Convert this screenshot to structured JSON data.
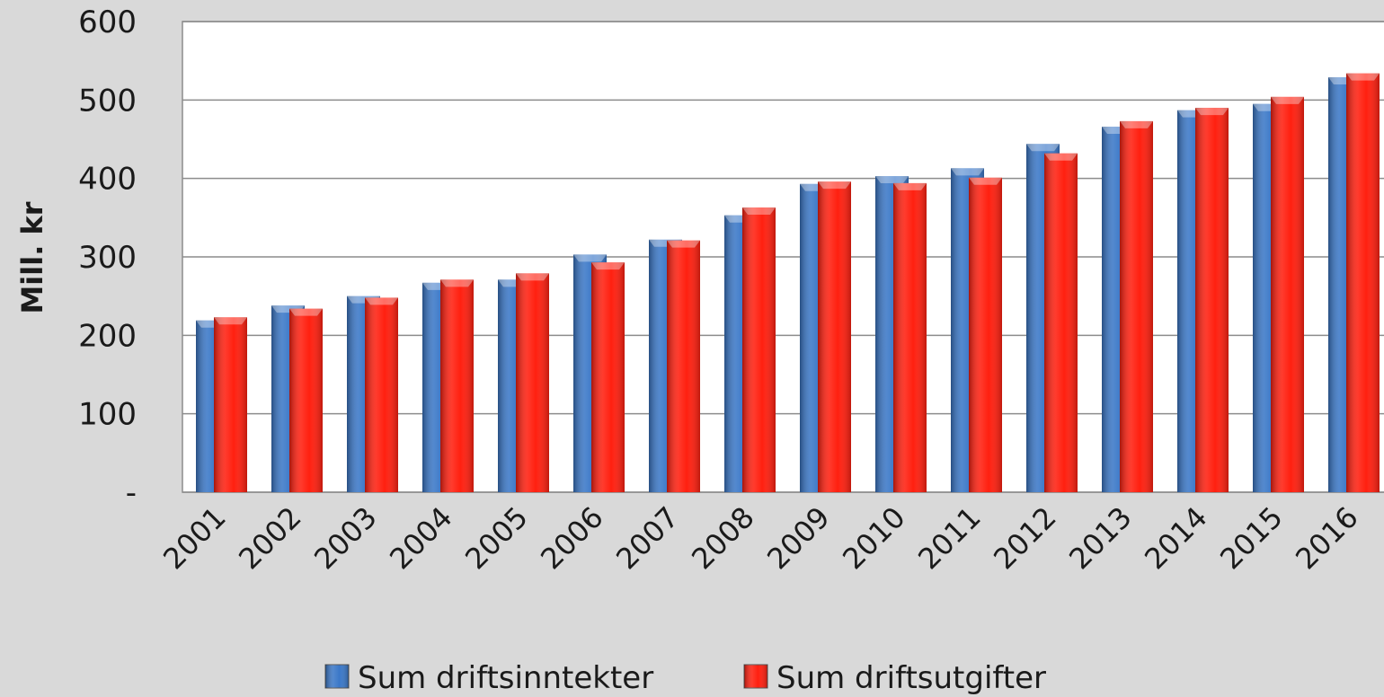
{
  "chart_data": {
    "type": "bar",
    "y_label": "Mill. kr",
    "categories": [
      "2001",
      "2002",
      "2003",
      "2004",
      "2005",
      "2006",
      "2007",
      "2008",
      "2009",
      "2010",
      "2011",
      "2012",
      "2013",
      "2014",
      "2015",
      "2016"
    ],
    "series": [
      {
        "name": "Sum driftsinntekter",
        "color": "#3b78c8",
        "values": [
          219,
          238,
          250,
          267,
          271,
          303,
          322,
          353,
          393,
          403,
          413,
          444,
          466,
          487,
          495,
          529
        ]
      },
      {
        "name": "Sum driftsutgifter",
        "color": "#ff2010",
        "values": [
          223,
          234,
          248,
          271,
          279,
          293,
          321,
          363,
          396,
          394,
          401,
          432,
          473,
          490,
          504,
          534
        ]
      }
    ],
    "ylim": [
      0,
      600
    ],
    "yticks": [
      {
        "value": 0,
        "label": "-"
      },
      100,
      200,
      300,
      400,
      500,
      600
    ],
    "grid": true,
    "legend": "bottom"
  }
}
